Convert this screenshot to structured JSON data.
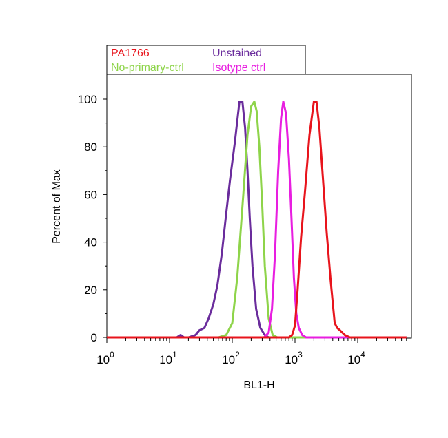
{
  "chart_data": {
    "type": "line",
    "xlabel": "BL1-H",
    "ylabel": "Percent of Max",
    "xscale": "log",
    "xlim": [
      1,
      60000
    ],
    "ylim": [
      0,
      110
    ],
    "grid": false,
    "legend_position": "top-left",
    "x_ticks": [
      {
        "base": "10",
        "exp": "0",
        "value": 1
      },
      {
        "base": "10",
        "exp": "1",
        "value": 10
      },
      {
        "base": "10",
        "exp": "2",
        "value": 100
      },
      {
        "base": "10",
        "exp": "3",
        "value": 1000
      },
      {
        "base": "10",
        "exp": "4",
        "value": 10000
      }
    ],
    "y_ticks": [
      "0",
      "20",
      "40",
      "60",
      "80",
      "100"
    ],
    "series": [
      {
        "name": "PA1766",
        "color": "#e8141c",
        "x": [
          1,
          500,
          800,
          900,
          1000,
          1100,
          1250,
          1450,
          1700,
          2000,
          2200,
          2450,
          2800,
          3200,
          3700,
          4300,
          4700,
          5200,
          6200,
          7500,
          60000
        ],
        "y": [
          0,
          0,
          0,
          1,
          5,
          20,
          42,
          62,
          85,
          99,
          99,
          88,
          66,
          44,
          24,
          6,
          4,
          3,
          1,
          0,
          0
        ]
      },
      {
        "name": "Unstained",
        "color": "#6a2c9c",
        "x": [
          1,
          13,
          15,
          17,
          20,
          26,
          30,
          36,
          42,
          50,
          58,
          68,
          80,
          92,
          110,
          130,
          145,
          160,
          175,
          190,
          210,
          240,
          280,
          330,
          380,
          60000
        ],
        "y": [
          0,
          0,
          1,
          0,
          0,
          1,
          3,
          4,
          8,
          14,
          22,
          35,
          52,
          66,
          82,
          99,
          99,
          88,
          70,
          50,
          30,
          12,
          4,
          1,
          0,
          0
        ]
      },
      {
        "name": "No-primary-ctrl",
        "color": "#8ed44a",
        "x": [
          1,
          60,
          80,
          100,
          120,
          150,
          175,
          200,
          225,
          245,
          270,
          300,
          330,
          380,
          440,
          520,
          60000
        ],
        "y": [
          0,
          0,
          1,
          6,
          25,
          60,
          85,
          97,
          99,
          95,
          80,
          56,
          30,
          8,
          1,
          0,
          0
        ]
      },
      {
        "name": "Isotype ctrl",
        "color": "#e81ee0",
        "x": [
          1,
          320,
          380,
          430,
          480,
          540,
          600,
          650,
          720,
          800,
          880,
          960,
          1050,
          1150,
          1300,
          1500,
          1800,
          60000
        ],
        "y": [
          0,
          0,
          2,
          12,
          35,
          70,
          92,
          99,
          94,
          75,
          50,
          25,
          10,
          4,
          1,
          0,
          0,
          0
        ]
      }
    ]
  }
}
